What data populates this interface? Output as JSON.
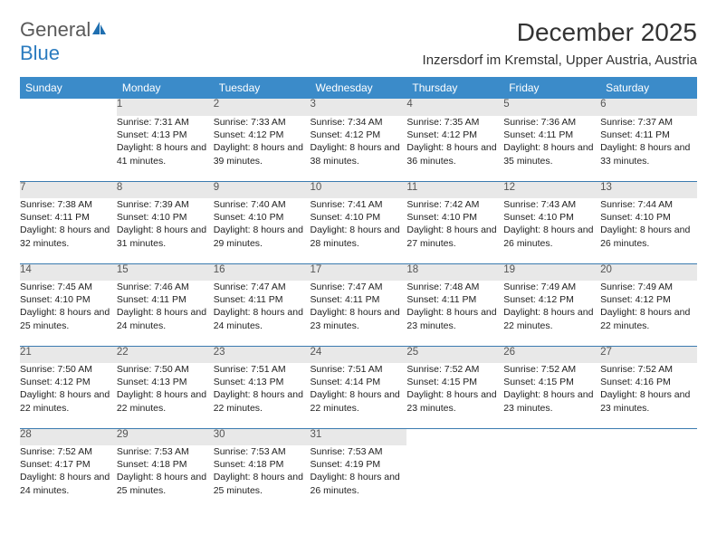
{
  "brand": {
    "text1": "General",
    "text2": "Blue"
  },
  "title": "December 2025",
  "subtitle": "Inzersdorf im Kremstal, Upper Austria, Austria",
  "colors": {
    "header_bg": "#3b8bc9",
    "header_fg": "#ffffff",
    "daynum_bg": "#e8e8e8",
    "daynum_fg": "#555555",
    "rule": "#3b7bb0",
    "logo_gray": "#5a5a5a",
    "logo_blue": "#2b7bbf"
  },
  "day_headers": [
    "Sunday",
    "Monday",
    "Tuesday",
    "Wednesday",
    "Thursday",
    "Friday",
    "Saturday"
  ],
  "weeks": [
    [
      null,
      {
        "n": "1",
        "sr": "7:31 AM",
        "ss": "4:13 PM",
        "dl": "8 hours and 41 minutes."
      },
      {
        "n": "2",
        "sr": "7:33 AM",
        "ss": "4:12 PM",
        "dl": "8 hours and 39 minutes."
      },
      {
        "n": "3",
        "sr": "7:34 AM",
        "ss": "4:12 PM",
        "dl": "8 hours and 38 minutes."
      },
      {
        "n": "4",
        "sr": "7:35 AM",
        "ss": "4:12 PM",
        "dl": "8 hours and 36 minutes."
      },
      {
        "n": "5",
        "sr": "7:36 AM",
        "ss": "4:11 PM",
        "dl": "8 hours and 35 minutes."
      },
      {
        "n": "6",
        "sr": "7:37 AM",
        "ss": "4:11 PM",
        "dl": "8 hours and 33 minutes."
      }
    ],
    [
      {
        "n": "7",
        "sr": "7:38 AM",
        "ss": "4:11 PM",
        "dl": "8 hours and 32 minutes."
      },
      {
        "n": "8",
        "sr": "7:39 AM",
        "ss": "4:10 PM",
        "dl": "8 hours and 31 minutes."
      },
      {
        "n": "9",
        "sr": "7:40 AM",
        "ss": "4:10 PM",
        "dl": "8 hours and 29 minutes."
      },
      {
        "n": "10",
        "sr": "7:41 AM",
        "ss": "4:10 PM",
        "dl": "8 hours and 28 minutes."
      },
      {
        "n": "11",
        "sr": "7:42 AM",
        "ss": "4:10 PM",
        "dl": "8 hours and 27 minutes."
      },
      {
        "n": "12",
        "sr": "7:43 AM",
        "ss": "4:10 PM",
        "dl": "8 hours and 26 minutes."
      },
      {
        "n": "13",
        "sr": "7:44 AM",
        "ss": "4:10 PM",
        "dl": "8 hours and 26 minutes."
      }
    ],
    [
      {
        "n": "14",
        "sr": "7:45 AM",
        "ss": "4:10 PM",
        "dl": "8 hours and 25 minutes."
      },
      {
        "n": "15",
        "sr": "7:46 AM",
        "ss": "4:11 PM",
        "dl": "8 hours and 24 minutes."
      },
      {
        "n": "16",
        "sr": "7:47 AM",
        "ss": "4:11 PM",
        "dl": "8 hours and 24 minutes."
      },
      {
        "n": "17",
        "sr": "7:47 AM",
        "ss": "4:11 PM",
        "dl": "8 hours and 23 minutes."
      },
      {
        "n": "18",
        "sr": "7:48 AM",
        "ss": "4:11 PM",
        "dl": "8 hours and 23 minutes."
      },
      {
        "n": "19",
        "sr": "7:49 AM",
        "ss": "4:12 PM",
        "dl": "8 hours and 22 minutes."
      },
      {
        "n": "20",
        "sr": "7:49 AM",
        "ss": "4:12 PM",
        "dl": "8 hours and 22 minutes."
      }
    ],
    [
      {
        "n": "21",
        "sr": "7:50 AM",
        "ss": "4:12 PM",
        "dl": "8 hours and 22 minutes."
      },
      {
        "n": "22",
        "sr": "7:50 AM",
        "ss": "4:13 PM",
        "dl": "8 hours and 22 minutes."
      },
      {
        "n": "23",
        "sr": "7:51 AM",
        "ss": "4:13 PM",
        "dl": "8 hours and 22 minutes."
      },
      {
        "n": "24",
        "sr": "7:51 AM",
        "ss": "4:14 PM",
        "dl": "8 hours and 22 minutes."
      },
      {
        "n": "25",
        "sr": "7:52 AM",
        "ss": "4:15 PM",
        "dl": "8 hours and 23 minutes."
      },
      {
        "n": "26",
        "sr": "7:52 AM",
        "ss": "4:15 PM",
        "dl": "8 hours and 23 minutes."
      },
      {
        "n": "27",
        "sr": "7:52 AM",
        "ss": "4:16 PM",
        "dl": "8 hours and 23 minutes."
      }
    ],
    [
      {
        "n": "28",
        "sr": "7:52 AM",
        "ss": "4:17 PM",
        "dl": "8 hours and 24 minutes."
      },
      {
        "n": "29",
        "sr": "7:53 AM",
        "ss": "4:18 PM",
        "dl": "8 hours and 25 minutes."
      },
      {
        "n": "30",
        "sr": "7:53 AM",
        "ss": "4:18 PM",
        "dl": "8 hours and 25 minutes."
      },
      {
        "n": "31",
        "sr": "7:53 AM",
        "ss": "4:19 PM",
        "dl": "8 hours and 26 minutes."
      },
      null,
      null,
      null
    ]
  ],
  "labels": {
    "sunrise": "Sunrise:",
    "sunset": "Sunset:",
    "daylight": "Daylight:"
  }
}
